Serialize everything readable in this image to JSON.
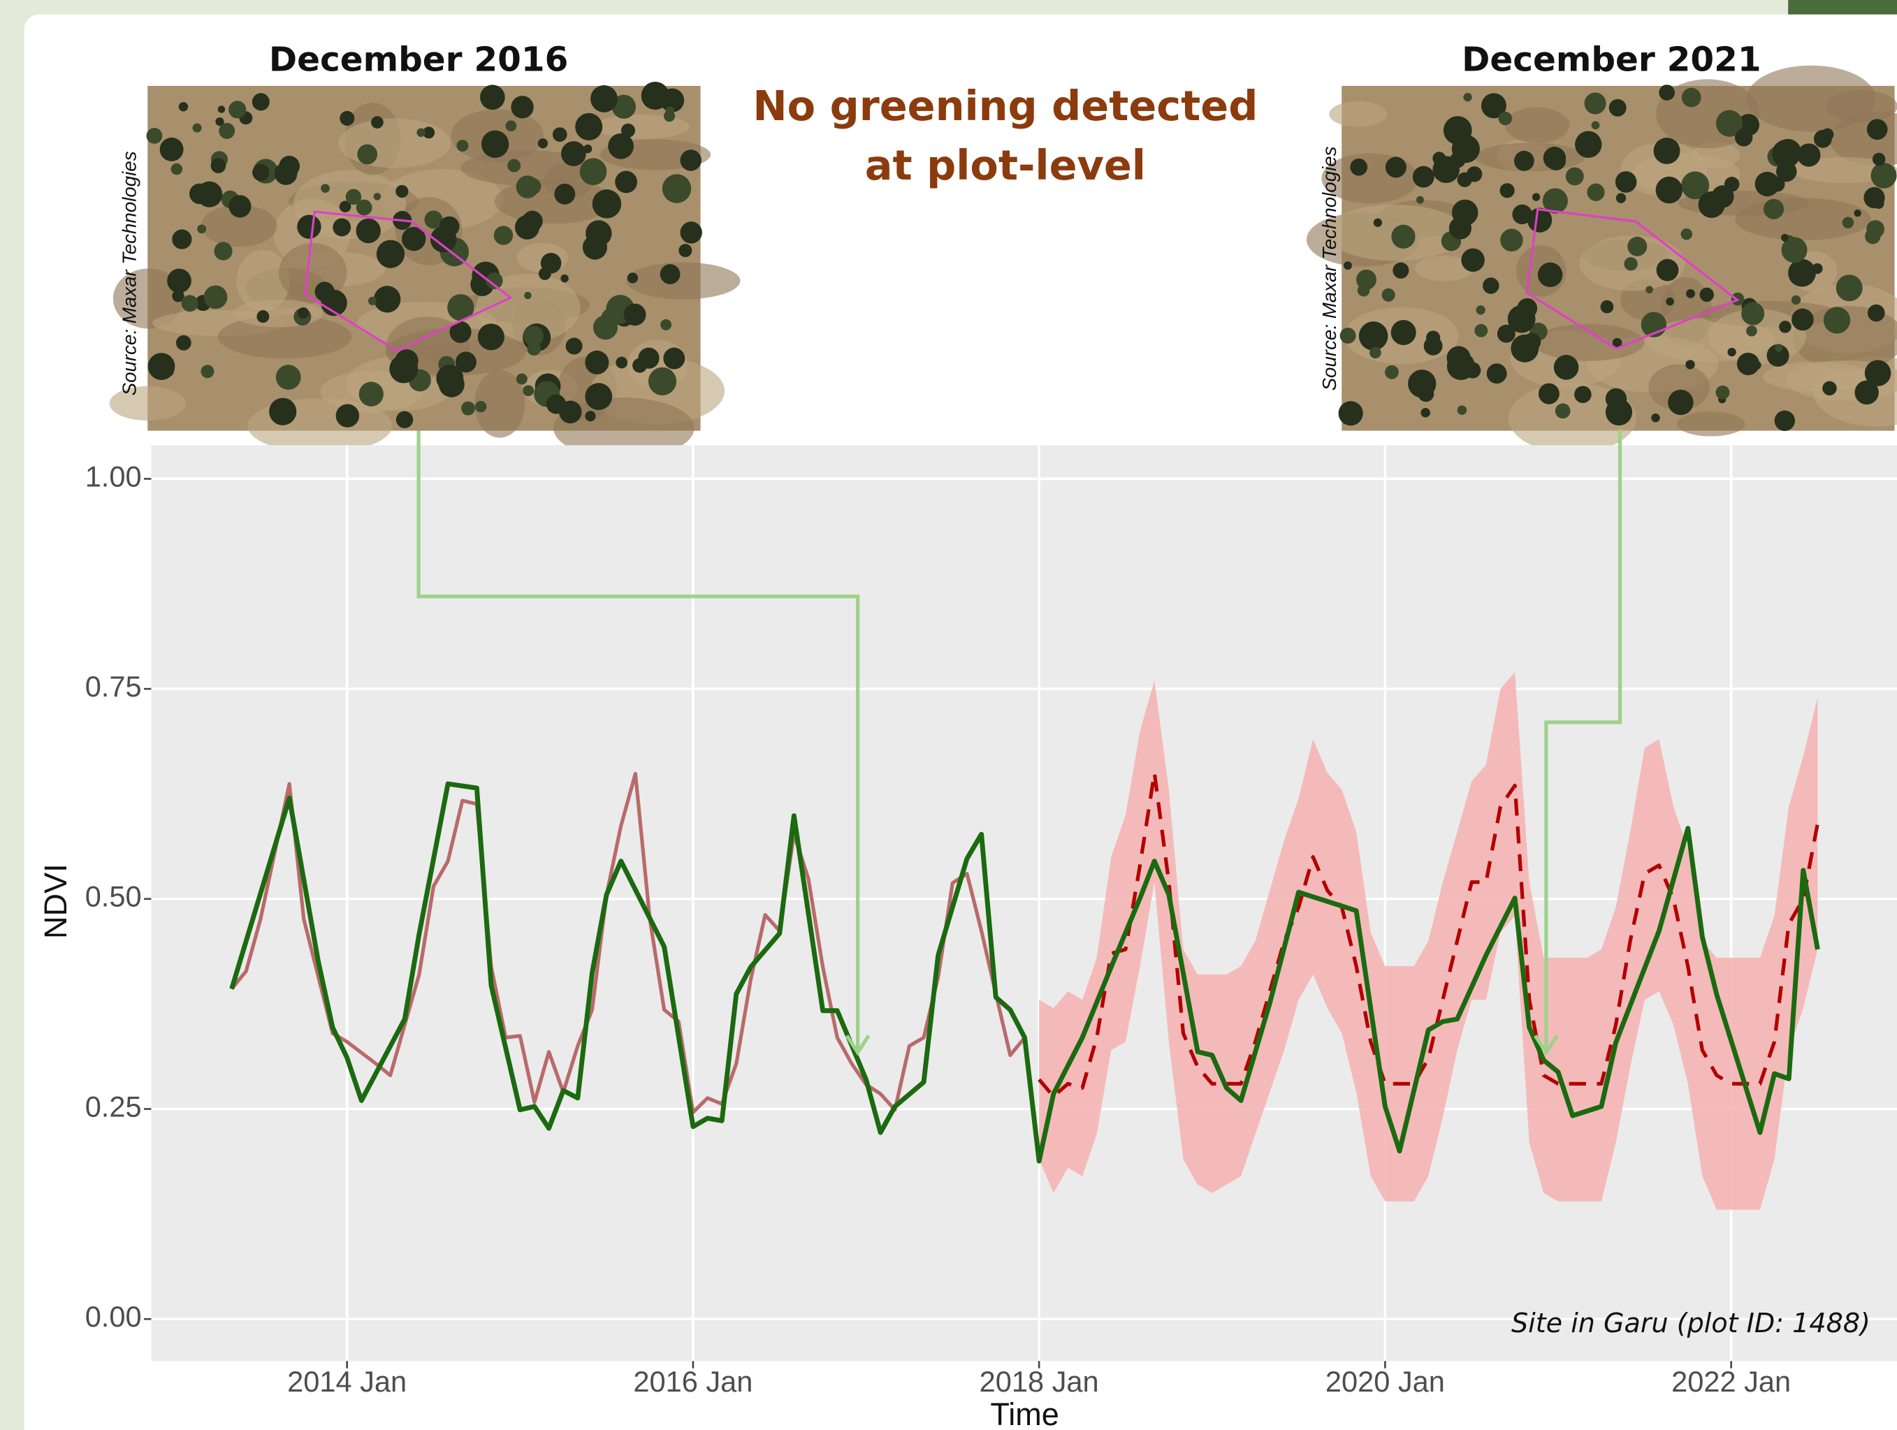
{
  "image_titles": [
    "December 2016",
    "December 2021"
  ],
  "headline": [
    "No greening detected",
    "at plot-level"
  ],
  "image_sources": [
    "Source: Maxar Technologies",
    "Source: Maxar Technologies"
  ],
  "chart_data": {
    "type": "line",
    "x_label": "Time",
    "y_label": "NDVI",
    "annotation": "Site in Garu (plot ID: 1488)",
    "xlim": [
      "2012-11",
      "2022-12"
    ],
    "xticks": [
      {
        "value": "2014-01",
        "label": "2014 Jan"
      },
      {
        "value": "2016-01",
        "label": "2016 Jan"
      },
      {
        "value": "2018-01",
        "label": "2018 Jan"
      },
      {
        "value": "2020-01",
        "label": "2020 Jan"
      },
      {
        "value": "2022-01",
        "label": "2022 Jan"
      }
    ],
    "ylim": [
      -0.05,
      1.04
    ],
    "yticks": [
      {
        "value": 0,
        "label": "0.00"
      },
      0.25,
      {
        "value": 0.5,
        "label": "0.50"
      },
      0.75,
      {
        "value": 1,
        "label": "1.00"
      }
    ],
    "grid": true,
    "series": [
      {
        "color": "#f5b5b5",
        "band_only": false,
        "style": "dashed",
        "line_color": "#b30000",
        "x": [
          "2018-01",
          "2018-02",
          "2018-03",
          "2018-04",
          "2018-05",
          "2018-06",
          "2018-07",
          "2018-08",
          "2018-09",
          "2018-10",
          "2018-11",
          "2018-12",
          "2019-01",
          "2019-02",
          "2019-03",
          "2019-04",
          "2019-05",
          "2019-06",
          "2019-07",
          "2019-08",
          "2019-09",
          "2019-10",
          "2019-11",
          "2019-12",
          "2020-01",
          "2020-02",
          "2020-03",
          "2020-04",
          "2020-05",
          "2020-06",
          "2020-07",
          "2020-08",
          "2020-09",
          "2020-10",
          "2020-11",
          "2020-12",
          "2021-01",
          "2021-02",
          "2021-03",
          "2021-04",
          "2021-05",
          "2021-06",
          "2021-07",
          "2021-08",
          "2021-09",
          "2021-10",
          "2021-11",
          "2021-12",
          "2022-01",
          "2022-02",
          "2022-03",
          "2022-04",
          "2022-05",
          "2022-06",
          "2022-07"
        ],
        "values": [
          0.285,
          0.265,
          0.28,
          0.275,
          0.335,
          0.435,
          0.44,
          0.54,
          0.65,
          0.52,
          0.34,
          0.3,
          0.28,
          0.28,
          0.28,
          0.33,
          0.39,
          0.45,
          0.49,
          0.55,
          0.51,
          0.49,
          0.42,
          0.33,
          0.28,
          0.28,
          0.28,
          0.31,
          0.38,
          0.45,
          0.52,
          0.52,
          0.61,
          0.635,
          0.38,
          0.29,
          0.28,
          0.28,
          0.28,
          0.28,
          0.35,
          0.45,
          0.53,
          0.54,
          0.5,
          0.42,
          0.32,
          0.29,
          0.28,
          0.28,
          0.28,
          0.33,
          0.47,
          0.5,
          0.59
        ],
        "lower": [
          0.19,
          0.15,
          0.18,
          0.17,
          0.22,
          0.32,
          0.33,
          0.42,
          0.52,
          0.33,
          0.19,
          0.16,
          0.15,
          0.16,
          0.17,
          0.22,
          0.27,
          0.32,
          0.38,
          0.41,
          0.37,
          0.34,
          0.27,
          0.17,
          0.14,
          0.14,
          0.14,
          0.17,
          0.24,
          0.32,
          0.38,
          0.38,
          0.46,
          0.48,
          0.21,
          0.15,
          0.14,
          0.14,
          0.14,
          0.14,
          0.21,
          0.3,
          0.38,
          0.39,
          0.35,
          0.28,
          0.17,
          0.13,
          0.13,
          0.13,
          0.13,
          0.19,
          0.32,
          0.37,
          0.44
        ],
        "upper": [
          0.38,
          0.37,
          0.39,
          0.38,
          0.43,
          0.55,
          0.6,
          0.7,
          0.76,
          0.63,
          0.44,
          0.41,
          0.41,
          0.41,
          0.42,
          0.45,
          0.51,
          0.57,
          0.62,
          0.69,
          0.65,
          0.63,
          0.58,
          0.46,
          0.42,
          0.42,
          0.42,
          0.45,
          0.52,
          0.58,
          0.64,
          0.66,
          0.75,
          0.77,
          0.52,
          0.43,
          0.43,
          0.43,
          0.43,
          0.44,
          0.49,
          0.58,
          0.68,
          0.69,
          0.61,
          0.56,
          0.45,
          0.43,
          0.43,
          0.43,
          0.43,
          0.48,
          0.61,
          0.67,
          0.74
        ]
      },
      {
        "color": "#b96a6a",
        "style": "solid",
        "width": 3,
        "x": [
          "2013-05",
          "2013-06",
          "2013-07",
          "2013-09",
          "2013-10",
          "2013-12",
          "2014-01",
          "2014-03",
          "2014-04",
          "2014-06",
          "2014-07",
          "2014-08",
          "2014-09",
          "2014-10",
          "2014-11",
          "2014-12",
          "2015-01",
          "2015-02",
          "2015-03",
          "2015-04",
          "2015-05",
          "2015-06",
          "2015-07",
          "2015-08",
          "2015-09",
          "2015-10",
          "2015-11",
          "2015-12",
          "2016-01",
          "2016-02",
          "2016-03",
          "2016-04",
          "2016-05",
          "2016-06",
          "2016-07",
          "2016-08",
          "2016-09",
          "2016-10",
          "2016-11",
          "2016-12",
          "2017-01",
          "2017-02",
          "2017-03",
          "2017-04",
          "2017-05",
          "2017-06",
          "2017-07",
          "2017-08",
          "2017-09",
          "2017-10",
          "2017-11",
          "2017-12"
        ],
        "values": [
          0.393,
          0.414,
          0.476,
          0.637,
          0.476,
          0.34,
          0.33,
          0.304,
          0.29,
          0.41,
          0.515,
          0.545,
          0.617,
          0.613,
          0.419,
          0.335,
          0.337,
          0.258,
          0.318,
          0.27,
          0.325,
          0.368,
          0.505,
          0.587,
          0.649,
          0.476,
          0.368,
          0.354,
          0.246,
          0.263,
          0.256,
          0.304,
          0.404,
          0.481,
          0.462,
          0.577,
          0.524,
          0.419,
          0.335,
          0.304,
          0.279,
          0.268,
          0.249,
          0.325,
          0.335,
          0.407,
          0.519,
          0.53,
          0.462,
          0.387,
          0.314,
          0.335
        ]
      },
      {
        "color": "#1b6a10",
        "style": "solid",
        "width": 4,
        "x": [
          "2013-05",
          "2013-09",
          "2013-11",
          "2013-12",
          "2014-01",
          "2014-02",
          "2014-05",
          "2014-06",
          "2014-08",
          "2014-10",
          "2014-11",
          "2015-01",
          "2015-02",
          "2015-03",
          "2015-04",
          "2015-05",
          "2015-06",
          "2015-07",
          "2015-08",
          "2015-11",
          "2016-01",
          "2016-02",
          "2016-03",
          "2016-04",
          "2016-05",
          "2016-07",
          "2016-08",
          "2016-10",
          "2016-11",
          "2017-01",
          "2017-02",
          "2017-03",
          "2017-05",
          "2017-06",
          "2017-08",
          "2017-09",
          "2017-10",
          "2017-11",
          "2017-12",
          "2018-01",
          "2018-02",
          "2018-04",
          "2018-06",
          "2018-08",
          "2018-09",
          "2018-10",
          "2018-12",
          "2019-01",
          "2019-02",
          "2019-03",
          "2019-05",
          "2019-07",
          "2019-11",
          "2020-01",
          "2020-02",
          "2020-04",
          "2020-05",
          "2020-06",
          "2020-08",
          "2020-10",
          "2020-11",
          "2020-12",
          "2021-01",
          "2021-02",
          "2021-04",
          "2021-05",
          "2021-08",
          "2021-10",
          "2021-11",
          "2021-12",
          "2022-03",
          "2022-04",
          "2022-05",
          "2022-06",
          "2022-07"
        ],
        "values": [
          0.393,
          0.62,
          0.426,
          0.347,
          0.311,
          0.26,
          0.357,
          0.458,
          0.637,
          0.632,
          0.397,
          0.249,
          0.253,
          0.227,
          0.272,
          0.263,
          0.412,
          0.505,
          0.545,
          0.443,
          0.229,
          0.239,
          0.236,
          0.387,
          0.419,
          0.459,
          0.599,
          0.367,
          0.367,
          0.285,
          0.222,
          0.253,
          0.282,
          0.433,
          0.548,
          0.577,
          0.383,
          0.368,
          0.335,
          0.188,
          0.268,
          0.335,
          0.419,
          0.501,
          0.545,
          0.505,
          0.318,
          0.314,
          0.275,
          0.26,
          0.376,
          0.508,
          0.486,
          0.253,
          0.2,
          0.344,
          0.354,
          0.357,
          0.433,
          0.501,
          0.347,
          0.308,
          0.294,
          0.242,
          0.253,
          0.329,
          0.462,
          0.584,
          0.455,
          0.386,
          0.222,
          0.292,
          0.286,
          0.534,
          0.44
        ]
      }
    ]
  }
}
